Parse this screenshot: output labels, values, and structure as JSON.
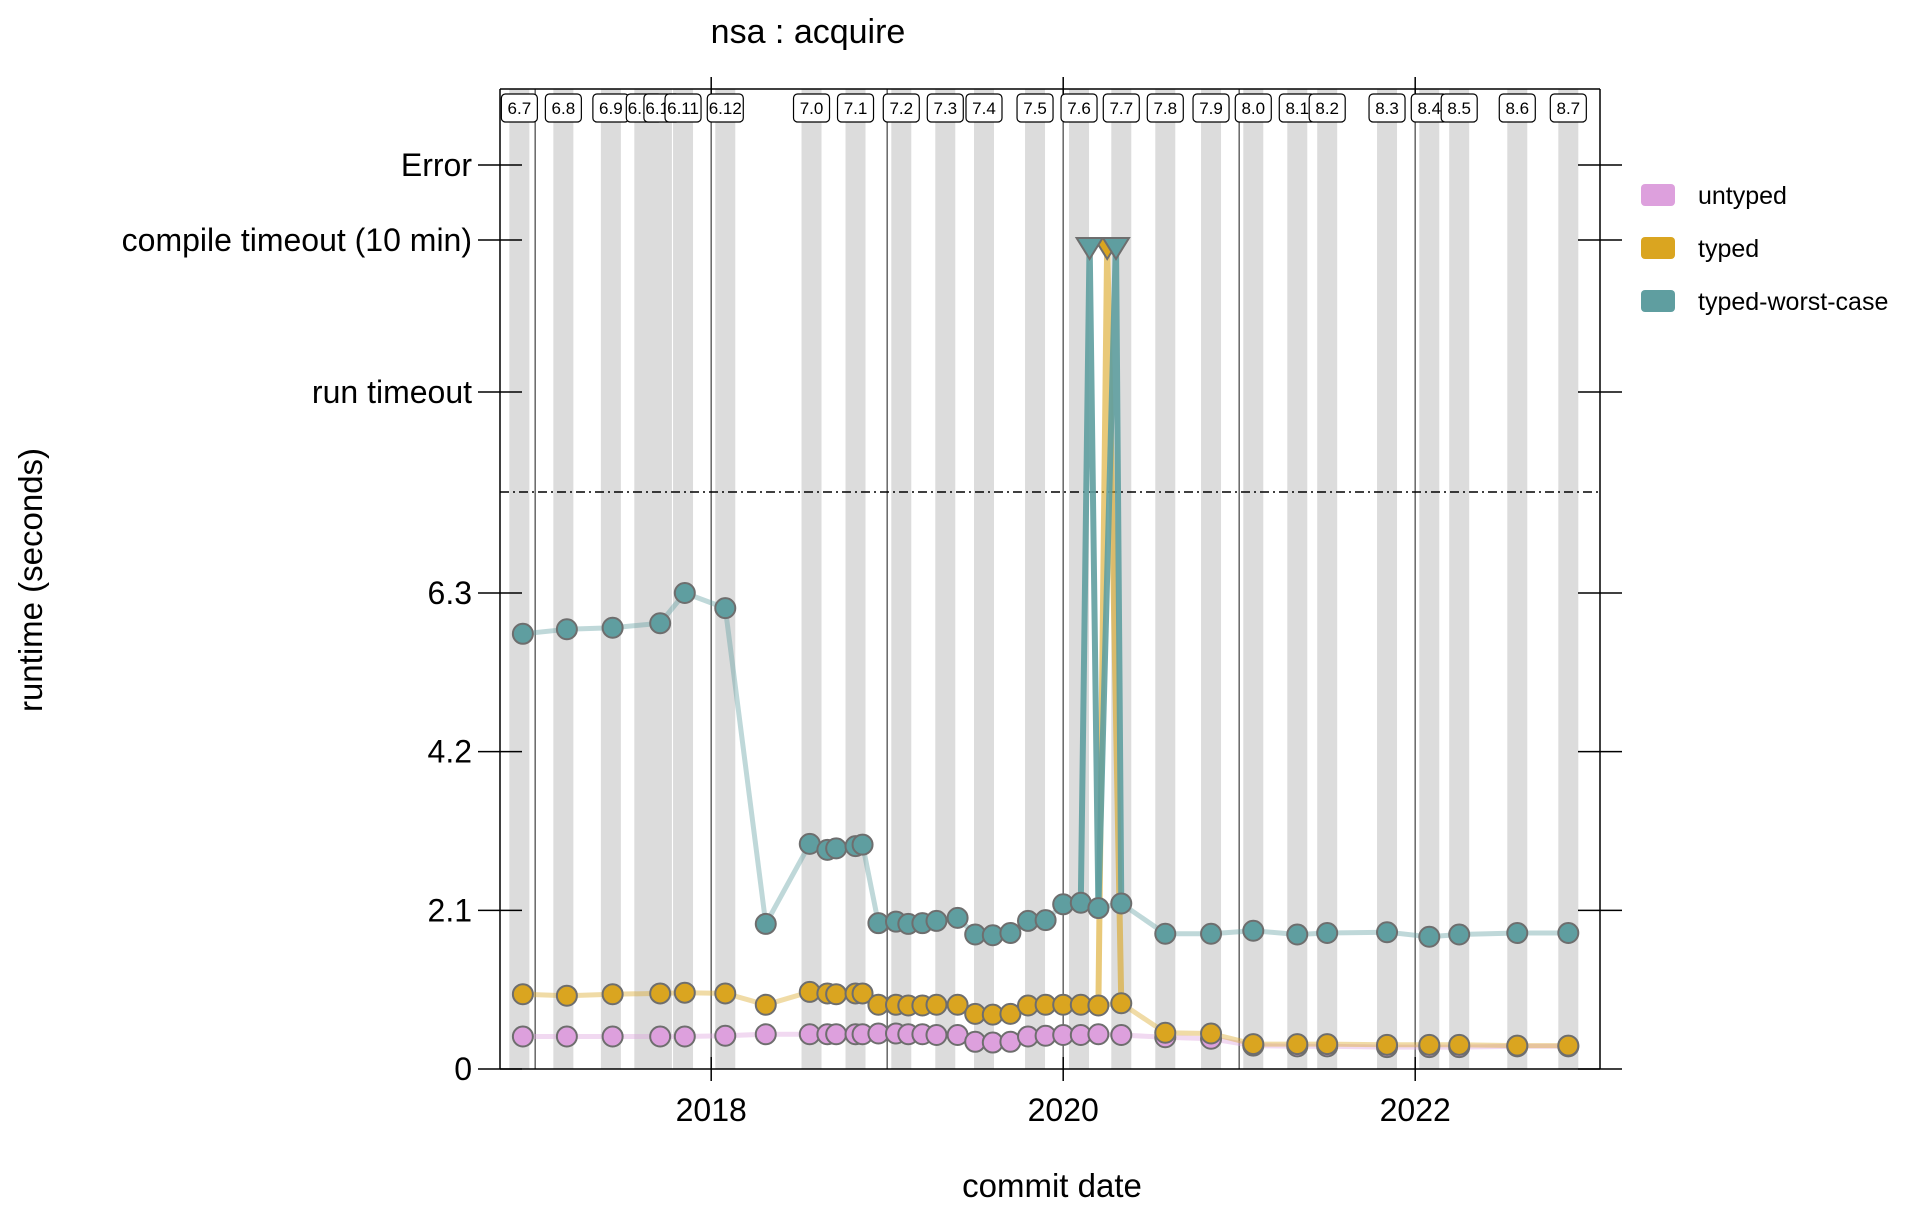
{
  "chart_data": {
    "type": "line",
    "title": "nsa : acquire",
    "xlabel": "commit date",
    "ylabel": "runtime (seconds)",
    "xlim": [
      2016.8,
      2023.05
    ],
    "ylim": [
      0,
      6.3
    ],
    "x_ticks": [
      {
        "value": 2018,
        "label": "2018"
      },
      {
        "value": 2020,
        "label": "2020"
      },
      {
        "value": 2022,
        "label": "2022"
      }
    ],
    "y_ticks": [
      {
        "value": 0,
        "label": "0"
      },
      {
        "value": 2.1,
        "label": "2.1"
      },
      {
        "value": 4.2,
        "label": "4.2"
      },
      {
        "value": 6.3,
        "label": "6.3"
      }
    ],
    "special_levels": [
      {
        "key": "run_timeout",
        "label": "run timeout"
      },
      {
        "key": "compile_timeout",
        "label": "compile timeout (10 min)"
      },
      {
        "key": "error",
        "label": "Error"
      }
    ],
    "versions": [
      {
        "label": "6.7",
        "x": 2016.91
      },
      {
        "label": "6.8",
        "x": 2017.16
      },
      {
        "label": "6.9",
        "x": 2017.43
      },
      {
        "label": "6.10",
        "x": 2017.62
      },
      {
        "label": "6.10",
        "x": 2017.72
      },
      {
        "label": "6.11",
        "x": 2017.84
      },
      {
        "label": "6.12",
        "x": 2018.08
      },
      {
        "label": "7.0",
        "x": 2018.57
      },
      {
        "label": "7.1",
        "x": 2018.82
      },
      {
        "label": "7.2",
        "x": 2019.08
      },
      {
        "label": "7.3",
        "x": 2019.33
      },
      {
        "label": "7.4",
        "x": 2019.55
      },
      {
        "label": "7.5",
        "x": 2019.84
      },
      {
        "label": "7.6",
        "x": 2020.09
      },
      {
        "label": "7.7",
        "x": 2020.33
      },
      {
        "label": "7.8",
        "x": 2020.58
      },
      {
        "label": "7.9",
        "x": 2020.84
      },
      {
        "label": "8.0",
        "x": 2021.08
      },
      {
        "label": "8.1",
        "x": 2021.33
      },
      {
        "label": "8.2",
        "x": 2021.5
      },
      {
        "label": "8.3",
        "x": 2021.84
      },
      {
        "label": "8.4",
        "x": 2022.08
      },
      {
        "label": "8.5",
        "x": 2022.25
      },
      {
        "label": "8.6",
        "x": 2022.58
      },
      {
        "label": "8.7",
        "x": 2022.87
      }
    ],
    "major_versions_x": [
      2017.0,
      2018.0,
      2019.0,
      2020.0,
      2021.0,
      2022.0
    ],
    "dashed_line": "above 6.3",
    "legend_position": "right",
    "series": [
      {
        "name": "untyped",
        "color": "#dda0dd",
        "points": [
          [
            2016.93,
            0.43
          ],
          [
            2017.18,
            0.43
          ],
          [
            2017.44,
            0.43
          ],
          [
            2017.71,
            0.43
          ],
          [
            2017.85,
            0.43
          ],
          [
            2018.08,
            0.44
          ],
          [
            2018.31,
            0.46
          ],
          [
            2018.56,
            0.46
          ],
          [
            2018.66,
            0.46
          ],
          [
            2018.71,
            0.46
          ],
          [
            2018.82,
            0.46
          ],
          [
            2018.86,
            0.46
          ],
          [
            2018.95,
            0.47
          ],
          [
            2019.05,
            0.47
          ],
          [
            2019.12,
            0.46
          ],
          [
            2019.2,
            0.46
          ],
          [
            2019.28,
            0.45
          ],
          [
            2019.4,
            0.45
          ],
          [
            2019.5,
            0.36
          ],
          [
            2019.6,
            0.35
          ],
          [
            2019.7,
            0.36
          ],
          [
            2019.8,
            0.43
          ],
          [
            2019.9,
            0.44
          ],
          [
            2020.0,
            0.45
          ],
          [
            2020.1,
            0.45
          ],
          [
            2020.2,
            0.46
          ],
          [
            2020.33,
            0.45
          ],
          [
            2020.58,
            0.42
          ],
          [
            2020.84,
            0.4
          ],
          [
            2021.08,
            0.31
          ],
          [
            2021.33,
            0.3
          ],
          [
            2021.5,
            0.3
          ],
          [
            2021.84,
            0.29
          ],
          [
            2022.08,
            0.29
          ],
          [
            2022.25,
            0.29
          ],
          [
            2022.58,
            0.3
          ],
          [
            2022.87,
            0.3
          ]
        ]
      },
      {
        "name": "typed",
        "color": "#daa520",
        "points": [
          [
            2016.93,
            0.99
          ],
          [
            2017.18,
            0.97
          ],
          [
            2017.44,
            0.99
          ],
          [
            2017.71,
            1.0
          ],
          [
            2017.85,
            1.01
          ],
          [
            2018.08,
            1.0
          ],
          [
            2018.31,
            0.85
          ],
          [
            2018.56,
            1.02
          ],
          [
            2018.66,
            1.0
          ],
          [
            2018.71,
            0.99
          ],
          [
            2018.82,
            1.0
          ],
          [
            2018.86,
            1.0
          ],
          [
            2018.95,
            0.85
          ],
          [
            2019.05,
            0.85
          ],
          [
            2019.12,
            0.84
          ],
          [
            2019.2,
            0.84
          ],
          [
            2019.28,
            0.85
          ],
          [
            2019.4,
            0.85
          ],
          [
            2019.5,
            0.73
          ],
          [
            2019.6,
            0.72
          ],
          [
            2019.7,
            0.73
          ],
          [
            2019.8,
            0.84
          ],
          [
            2019.9,
            0.85
          ],
          [
            2020.0,
            0.85
          ],
          [
            2020.1,
            0.85
          ],
          [
            2020.2,
            0.84
          ],
          [
            2020.25,
            "compile timeout (10 min)"
          ],
          [
            2020.33,
            0.87
          ],
          [
            2020.58,
            0.48
          ],
          [
            2020.84,
            0.47
          ],
          [
            2021.08,
            0.33
          ],
          [
            2021.33,
            0.33
          ],
          [
            2021.5,
            0.33
          ],
          [
            2021.84,
            0.32
          ],
          [
            2022.08,
            0.32
          ],
          [
            2022.25,
            0.32
          ],
          [
            2022.58,
            0.31
          ],
          [
            2022.87,
            0.31
          ]
        ]
      },
      {
        "name": "typed-worst-case",
        "color": "#5f9ea0",
        "points": [
          [
            2016.93,
            5.76
          ],
          [
            2017.18,
            5.82
          ],
          [
            2017.44,
            5.84
          ],
          [
            2017.71,
            5.9
          ],
          [
            2017.85,
            6.3
          ],
          [
            2018.08,
            6.1
          ],
          [
            2018.31,
            1.92
          ],
          [
            2018.56,
            2.98
          ],
          [
            2018.66,
            2.9
          ],
          [
            2018.71,
            2.92
          ],
          [
            2018.82,
            2.95
          ],
          [
            2018.86,
            2.97
          ],
          [
            2018.95,
            1.93
          ],
          [
            2019.05,
            1.95
          ],
          [
            2019.12,
            1.92
          ],
          [
            2019.2,
            1.93
          ],
          [
            2019.28,
            1.96
          ],
          [
            2019.4,
            2.0
          ],
          [
            2019.5,
            1.78
          ],
          [
            2019.6,
            1.77
          ],
          [
            2019.7,
            1.8
          ],
          [
            2019.8,
            1.96
          ],
          [
            2019.9,
            1.97
          ],
          [
            2020.0,
            2.18
          ],
          [
            2020.1,
            2.2
          ],
          [
            2020.15,
            "compile timeout (10 min)"
          ],
          [
            2020.2,
            2.13
          ],
          [
            2020.3,
            "compile timeout (10 min)"
          ],
          [
            2020.33,
            2.19
          ],
          [
            2020.58,
            1.79
          ],
          [
            2020.84,
            1.79
          ],
          [
            2021.08,
            1.83
          ],
          [
            2021.33,
            1.78
          ],
          [
            2021.5,
            1.8
          ],
          [
            2021.84,
            1.81
          ],
          [
            2022.08,
            1.75
          ],
          [
            2022.25,
            1.78
          ],
          [
            2022.58,
            1.8
          ],
          [
            2022.87,
            1.8
          ]
        ]
      }
    ]
  }
}
